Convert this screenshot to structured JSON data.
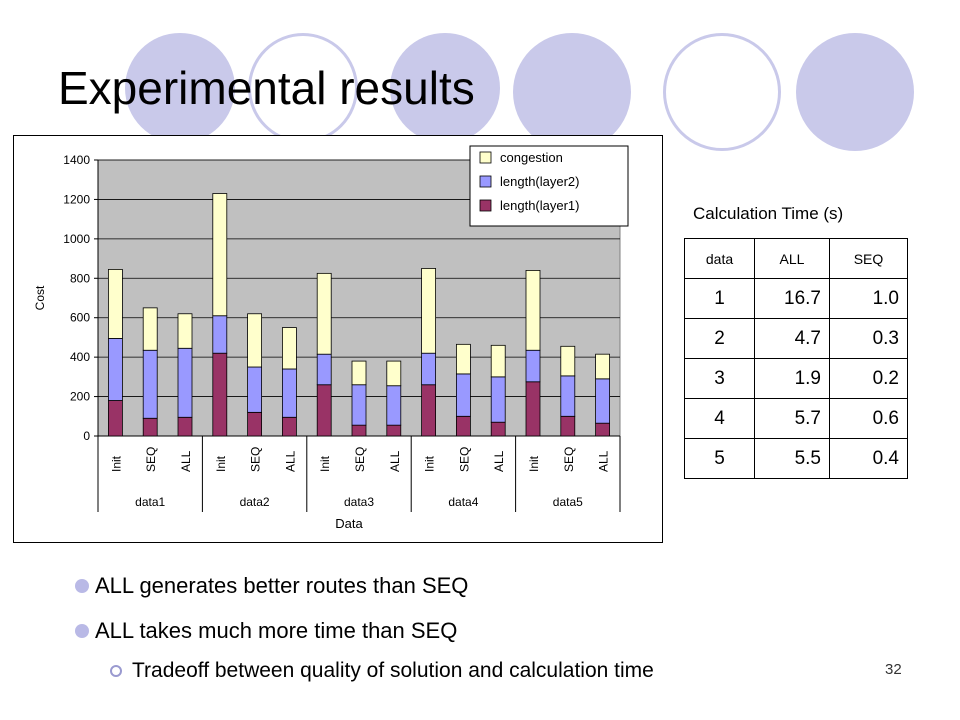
{
  "slide": {
    "title": "Experimental results",
    "page_number": "32",
    "bullets": [
      "ALL generates better routes than SEQ",
      "ALL takes much more time than SEQ"
    ],
    "sub_bullet": "Tradeoff between quality of solution and calculation time",
    "decor_color": "#c9c9ea"
  },
  "calc_table": {
    "title": "Calculation Time (s)",
    "headers": [
      "data",
      "ALL",
      "SEQ"
    ],
    "rows": [
      [
        "1",
        "16.7",
        "1.0"
      ],
      [
        "2",
        "4.7",
        "0.3"
      ],
      [
        "3",
        "1.9",
        "0.2"
      ],
      [
        "4",
        "5.7",
        "0.6"
      ],
      [
        "5",
        "5.5",
        "0.4"
      ]
    ]
  },
  "chart_data": {
    "type": "bar",
    "stacked": true,
    "xlabel": "Data",
    "ylabel": "Cost",
    "ylim": [
      0,
      1400
    ],
    "yticks": [
      0,
      200,
      400,
      600,
      800,
      1000,
      1200,
      1400
    ],
    "groups": [
      "data1",
      "data2",
      "data3",
      "data4",
      "data5"
    ],
    "categories": [
      "Init",
      "SEQ",
      "ALL",
      "Init",
      "SEQ",
      "ALL",
      "Init",
      "SEQ",
      "ALL",
      "Init",
      "SEQ",
      "ALL",
      "Init",
      "SEQ",
      "ALL"
    ],
    "series": [
      {
        "name": "length(layer1)",
        "color": "#993366",
        "values": [
          180,
          90,
          95,
          420,
          120,
          95,
          260,
          55,
          55,
          260,
          100,
          70,
          275,
          100,
          65
        ]
      },
      {
        "name": "length(layer2)",
        "color": "#9999ff",
        "values": [
          315,
          345,
          350,
          190,
          230,
          245,
          155,
          205,
          200,
          160,
          215,
          230,
          160,
          205,
          225
        ]
      },
      {
        "name": "congestion",
        "color": "#ffffcc",
        "values": [
          350,
          215,
          175,
          620,
          270,
          210,
          410,
          120,
          125,
          430,
          150,
          160,
          405,
          150,
          125
        ]
      }
    ],
    "legend_position": "top-right",
    "plot_background": "#c0c0c0",
    "grid": true
  }
}
